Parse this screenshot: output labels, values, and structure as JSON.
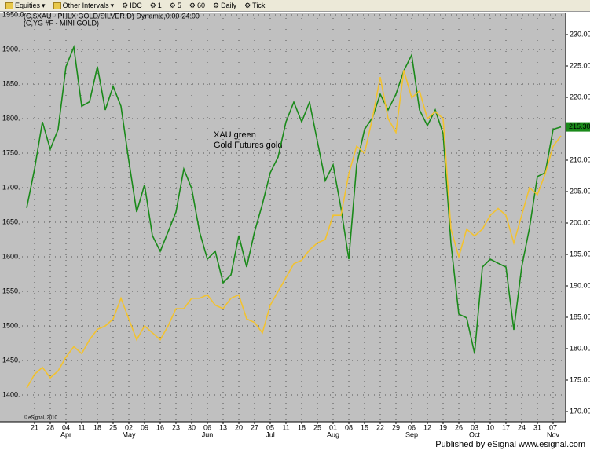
{
  "toolbar": [
    "Equities",
    "Other Intervals",
    "IDC",
    "1",
    "5",
    "60",
    "Daily",
    "Tick"
  ],
  "footer": "Published by eSignal www.esignal.com",
  "copyright": "© eSignal, 2010",
  "chart_data": {
    "type": "line",
    "legend_lines": [
      "(C,$XAU - PHLX GOLD/SILVER,D) Dynamic,0:00-24:00",
      "(C,YG #F - MINI GOLD)"
    ],
    "annotation": [
      "XAU green",
      "Gold Futures gold"
    ],
    "categories": [
      null,
      "21",
      null,
      "28",
      null,
      "04",
      null,
      "11",
      null,
      "18",
      null,
      "25",
      null,
      "02",
      null,
      "09",
      null,
      "16",
      null,
      "23",
      null,
      "30",
      null,
      "06",
      null,
      "13",
      null,
      "20",
      null,
      "27",
      null,
      "05",
      null,
      "11",
      null,
      "18",
      null,
      "25",
      null,
      "01",
      null,
      "08",
      null,
      "15",
      null,
      "22",
      null,
      "29",
      null,
      "06",
      null,
      "12",
      null,
      "19",
      null,
      "26",
      null,
      "03",
      null,
      "10",
      null,
      "17",
      null,
      "24",
      null,
      "31",
      null,
      "07",
      null
    ],
    "month_labels": [
      null,
      null,
      null,
      null,
      null,
      "Apr",
      null,
      null,
      null,
      null,
      null,
      null,
      null,
      "May",
      null,
      null,
      null,
      null,
      null,
      null,
      null,
      null,
      null,
      "Jun",
      null,
      null,
      null,
      null,
      null,
      null,
      null,
      "Jul",
      null,
      null,
      null,
      null,
      null,
      null,
      null,
      "Aug",
      null,
      null,
      null,
      null,
      null,
      null,
      null,
      null,
      null,
      "Sep",
      null,
      null,
      null,
      null,
      null,
      null,
      null,
      "Oct",
      null,
      null,
      null,
      null,
      null,
      null,
      null,
      null,
      null,
      "Nov",
      null
    ],
    "series": [
      {
        "color": "#1a8a1a",
        "axis": "y2",
        "values": [
          202.4,
          208.6,
          216.1,
          211.75,
          214.9,
          224.9,
          228,
          218.6,
          219.3,
          224.9,
          218,
          221.75,
          218.6,
          209.9,
          201.75,
          206.1,
          198,
          195.5,
          198.6,
          201.75,
          208.6,
          205.5,
          198.6,
          194.25,
          195.5,
          190.5,
          191.75,
          198,
          193,
          198.6,
          203,
          208,
          210.5,
          216.1,
          219.25,
          216.1,
          219.25,
          213,
          206.75,
          209.25,
          202.4,
          194.25,
          209.25,
          214.9,
          216.75,
          220.5,
          218,
          220.5,
          224.25,
          226.75,
          218,
          215.5,
          218,
          214.25,
          196.75,
          185.5,
          184.9,
          179.25,
          193,
          194.25,
          193.6,
          193,
          183,
          193,
          199.25,
          207.4,
          208,
          214.9,
          215.3
        ],
        "last_label": {
          "value": 215.3,
          "label": "215.30"
        }
      },
      {
        "color": "#f2c230",
        "values": [
          1410,
          1430,
          1440,
          1425,
          1435,
          1455,
          1470,
          1460,
          1480,
          1495,
          1500,
          1510,
          1540,
          1510,
          1480,
          1500,
          1490,
          1480,
          1500,
          1525,
          1525,
          1540,
          1540,
          1545,
          1530,
          1525,
          1540,
          1545,
          1510,
          1505,
          1490,
          1530,
          1550,
          1570,
          1590,
          1595,
          1610,
          1620,
          1625,
          1660,
          1660,
          1720,
          1760,
          1750,
          1800,
          1860,
          1800,
          1780,
          1870,
          1830,
          1840,
          1800,
          1810,
          1800,
          1640,
          1600,
          1640,
          1630,
          1640,
          1660,
          1670,
          1660,
          1620,
          1660,
          1700,
          1690,
          1720,
          1760,
          1775
        ]
      }
    ],
    "ylim": [
      1361.4,
      1953.4
    ],
    "yticks": [
      {
        "value": 1400,
        "label": "1400."
      },
      {
        "value": 1450,
        "label": "1450."
      },
      {
        "value": 1500,
        "label": "1500."
      },
      {
        "value": 1550,
        "label": "1550."
      },
      {
        "value": 1600,
        "label": "1600."
      },
      {
        "value": 1650,
        "label": "1650."
      },
      {
        "value": 1700,
        "label": "1700."
      },
      {
        "value": 1750,
        "label": "1750."
      },
      {
        "value": 1800,
        "label": "1800."
      },
      {
        "value": 1850,
        "label": "1850."
      },
      {
        "value": 1900,
        "label": "1900."
      },
      {
        "value": 1950,
        "label": "1950.0"
      }
    ],
    "y2lim": [
      168.375,
      233.5
    ],
    "y2ticks": [
      {
        "value": 170,
        "label": "170.00"
      },
      {
        "value": 175,
        "label": "175.00"
      },
      {
        "value": 180,
        "label": "180.00"
      },
      {
        "value": 185,
        "label": "185.00"
      },
      {
        "value": 190,
        "label": "190.00"
      },
      {
        "value": 195,
        "label": "195.00"
      },
      {
        "value": 200,
        "label": "200.00"
      },
      {
        "value": 205,
        "label": "205.00"
      },
      {
        "value": 210,
        "label": "210.00"
      },
      {
        "value": 215,
        "label": "215.00"
      },
      {
        "value": 220,
        "label": "220.00"
      },
      {
        "value": 225,
        "label": "225.00"
      },
      {
        "value": 230,
        "label": "230.00"
      }
    ],
    "grid": true
  }
}
